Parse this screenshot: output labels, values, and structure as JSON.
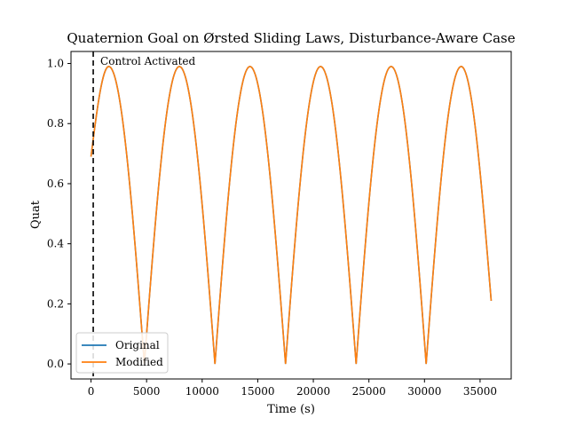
{
  "chart_data": {
    "type": "line",
    "title": "Quaternion Goal on Ørsted Sliding Laws, Disturbance-Aware Case",
    "xlabel": "Time (s)",
    "ylabel": "Quat",
    "xlim": [
      -1800,
      37800
    ],
    "ylim": [
      -0.05,
      1.04
    ],
    "x_ticks": [
      0,
      5000,
      10000,
      15000,
      20000,
      25000,
      30000,
      35000
    ],
    "y_ticks": [
      0.0,
      0.2,
      0.4,
      0.6,
      0.8,
      1.0
    ],
    "x_tick_labels": [
      "0",
      "5000",
      "10000",
      "15000",
      "20000",
      "25000",
      "30000",
      "35000"
    ],
    "y_tick_labels": [
      "0.0",
      "0.2",
      "0.4",
      "0.6",
      "0.8",
      "1.0"
    ],
    "grid": false,
    "legend_position": "lower-left",
    "series": [
      {
        "name": "Original",
        "color": "#1f77b4",
        "x": [
          0,
          1600,
          4800,
          7950,
          11150,
          14300,
          17500,
          20650,
          23850,
          27000,
          30150,
          33300,
          36000
        ],
        "y": [
          0.69,
          0.99,
          0.0,
          0.99,
          0.0,
          0.99,
          0.0,
          0.99,
          0.0,
          0.99,
          0.0,
          0.99,
          0.21
        ]
      },
      {
        "name": "Modified",
        "color": "#ff7f0e",
        "x": [
          0,
          1600,
          4800,
          7950,
          11150,
          14300,
          17500,
          20650,
          23850,
          27000,
          30150,
          33300,
          36000
        ],
        "y": [
          0.69,
          0.99,
          0.0,
          0.99,
          0.0,
          0.99,
          0.0,
          0.99,
          0.0,
          0.99,
          0.0,
          0.99,
          0.21
        ]
      }
    ],
    "annotations": [
      {
        "text": "Control Activated",
        "x": 200,
        "line_style": "dashed",
        "line_color": "#000000"
      }
    ]
  }
}
